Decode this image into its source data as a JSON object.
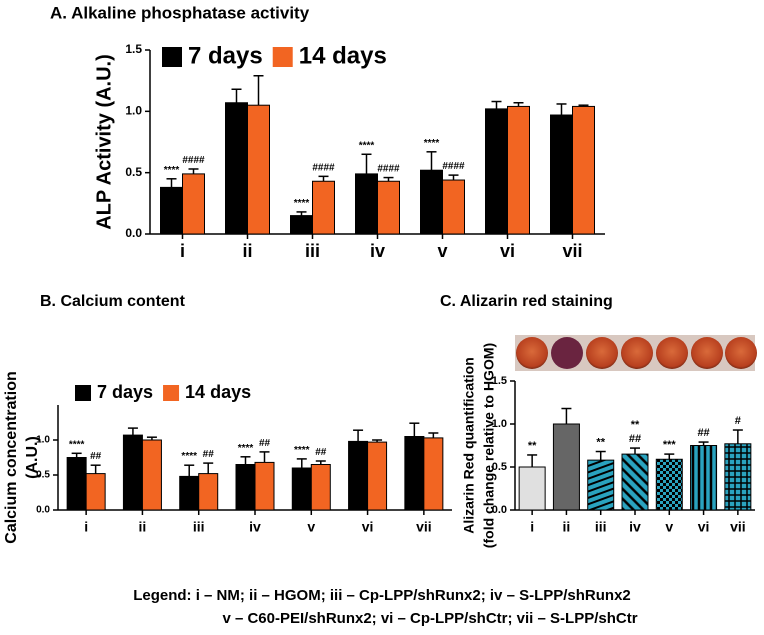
{
  "chart_data": [
    {
      "type": "bar",
      "title": "A. Alkaline phosphatase activity",
      "ylabel": [
        "ALP Activity  (A.U.)"
      ],
      "categories": [
        "i",
        "ii",
        "iii",
        "iv",
        "v",
        "vi",
        "vii"
      ],
      "series": [
        {
          "name": "7 days",
          "color": "#000000",
          "values": [
            0.38,
            1.07,
            0.15,
            0.49,
            0.52,
            1.02,
            0.97
          ],
          "errors": [
            0.07,
            0.11,
            0.03,
            0.16,
            0.15,
            0.06,
            0.09
          ],
          "annotations": [
            "****",
            null,
            "****",
            "****",
            "****",
            null,
            null
          ]
        },
        {
          "name": "14 days",
          "color": "#f26522",
          "values": [
            0.49,
            1.05,
            0.43,
            0.43,
            0.44,
            1.04,
            1.04
          ],
          "errors": [
            0.04,
            0.24,
            0.04,
            0.03,
            0.04,
            0.03,
            0.01
          ],
          "annotations": [
            "####",
            null,
            "####",
            "####",
            "####",
            null,
            null
          ]
        }
      ],
      "ylim": [
        0,
        1.5
      ],
      "yticks": [
        {
          "value": 0,
          "label": "0.0"
        },
        0.5,
        {
          "value": 1,
          "label": "1.0"
        },
        1.5
      ],
      "legend": "top-left"
    },
    {
      "type": "bar",
      "title": "B. Calcium content",
      "ylabel": [
        "Calcium concentration",
        "(A.U.)"
      ],
      "categories": [
        "i",
        "ii",
        "iii",
        "iv",
        "v",
        "vi",
        "vii"
      ],
      "series": [
        {
          "name": "7 days",
          "color": "#000000",
          "values": [
            0.75,
            1.07,
            0.48,
            0.65,
            0.6,
            0.98,
            1.05
          ],
          "errors": [
            0.06,
            0.1,
            0.16,
            0.11,
            0.13,
            0.16,
            0.19
          ],
          "annotations": [
            "****",
            null,
            "****",
            "****",
            "****",
            null,
            null
          ]
        },
        {
          "name": "14 days",
          "color": "#f26522",
          "values": [
            0.52,
            1.0,
            0.52,
            0.68,
            0.65,
            0.97,
            1.03
          ],
          "errors": [
            0.12,
            0.04,
            0.15,
            0.15,
            0.05,
            0.03,
            0.07
          ],
          "annotations": [
            "##",
            null,
            "##",
            "##",
            "##",
            null,
            null
          ]
        }
      ],
      "ylim": [
        0,
        1.5
      ],
      "yticks": [
        {
          "value": 0,
          "label": "0.0"
        },
        0.5,
        {
          "value": 1,
          "label": "1.0"
        }
      ],
      "legend": "top-left"
    },
    {
      "type": "bar",
      "title": "C. Alizarin red staining",
      "ylabel": [
        "Alizarin Red quantification",
        "(fold change relative to HGOM)"
      ],
      "categories": [
        "i",
        "ii",
        "iii",
        "iv",
        "v",
        "vi",
        "vii"
      ],
      "values": [
        0.5,
        1.0,
        0.58,
        0.65,
        0.59,
        0.75,
        0.77
      ],
      "errors": [
        0.14,
        0.18,
        0.1,
        0.07,
        0.06,
        0.04,
        0.16
      ],
      "annotations": [
        [
          "**"
        ],
        [],
        [
          "**"
        ],
        [
          "##",
          "**"
        ],
        [
          "***"
        ],
        [
          "##"
        ],
        [
          "#"
        ]
      ],
      "colors": [
        "#e0e0e0",
        "#666666",
        "#2aa3bf",
        "#2aa3bf",
        "#2aa3bf",
        "#2aa3bf",
        "#2aa3bf"
      ],
      "patterns": [
        "none",
        "none",
        "horizontal",
        "diagonal",
        "checker",
        "vertical",
        "grid"
      ],
      "ylim": [
        0,
        1.5
      ],
      "yticks": [
        {
          "value": 0,
          "label": "0.0"
        },
        0.5,
        {
          "value": 1,
          "label": "1.0"
        },
        1.5
      ]
    }
  ],
  "legend_text": [
    "Legend: i – NM; ii – HGOM; iii – Cp-LPP/shRunx2; iv – S-LPP/shRunx2",
    "v – C60-PEI/shRunx2; vi – Cp-LPP/shCtr; vii – S-LPP/shCtr"
  ]
}
